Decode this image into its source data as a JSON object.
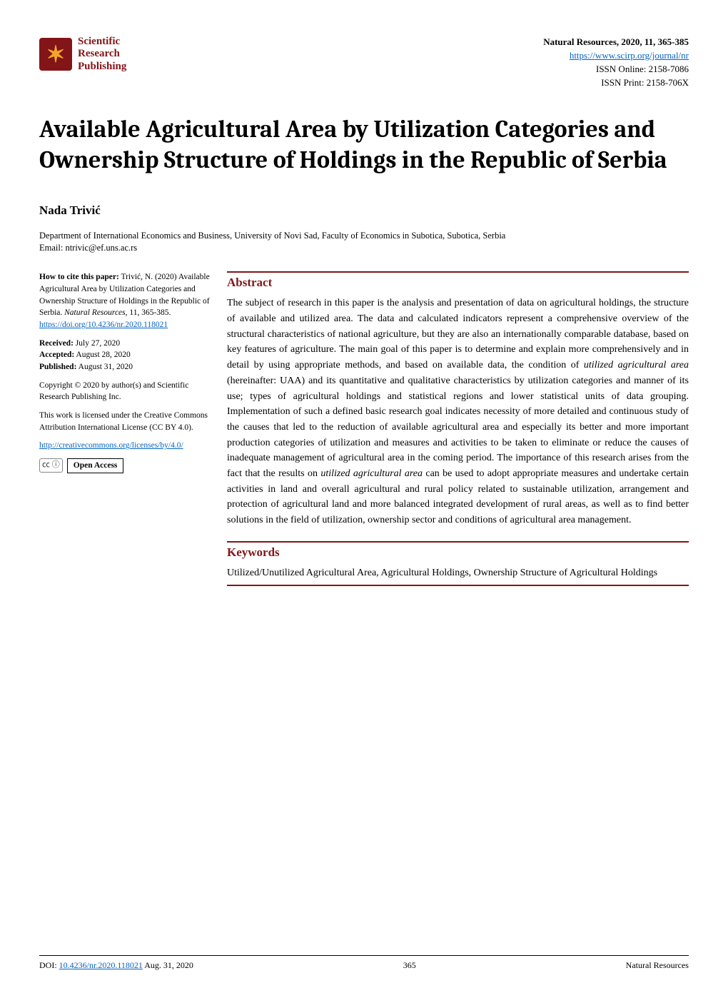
{
  "colors": {
    "brand_maroon": "#831518",
    "brand_gold": "#f4a62a",
    "link": "#0563c1",
    "text": "#000000",
    "background": "#ffffff"
  },
  "typography": {
    "body_font": "Times New Roman",
    "title_font": "Cambria",
    "title_size_pt": 26,
    "abstract_size_pt": 11,
    "sidebar_size_pt": 9
  },
  "header": {
    "publisher": "Scientific\nResearch\nPublishing",
    "journal_line1": "Natural Resources, 2020, 11, 365-385",
    "journal_url_text": "https://www.scirp.org/journal/nr",
    "issn_online": "ISSN Online: 2158-7086",
    "issn_print": "ISSN Print: 2158-706X"
  },
  "title": "Available Agricultural Area by Utilization Categories and Ownership Structure of Holdings in the Republic of Serbia",
  "author": "Nada Trivić",
  "affiliation": "Department of International Economics and Business, University of Novi Sad, Faculty of Economics in Subotica, Subotica, Serbia",
  "email": "Email: ntrivic@ef.uns.ac.rs",
  "sidebar": {
    "cite_label": "How to cite this paper:",
    "cite_text": " Trivić, N. (2020) Available Agricultural Area by Utilization Categories and Ownership Structure of Holdings in the Republic of Serbia. ",
    "cite_journal": "Natural Resources",
    "cite_vol": ", 11, 365-385.",
    "doi_link": "https://doi.org/10.4236/nr.2020.118021",
    "received_label": "Received:",
    "received": " July 27, 2020",
    "accepted_label": "Accepted:",
    "accepted": " August 28, 2020",
    "published_label": "Published:",
    "published": " August 31, 2020",
    "copyright": "Copyright © 2020 by author(s) and Scientific Research Publishing Inc.",
    "license1": "This work is licensed under the Creative Commons Attribution International License (CC BY 4.0).",
    "license_url": "http://creativecommons.org/licenses/by/4.0/",
    "cc_badge": "㏄ ⓘ",
    "open_access": "Open Access"
  },
  "abstract_heading": "Abstract",
  "abstract_p1": "The subject of research in this paper is the analysis and presentation of data on agricultural holdings, the structure of available and utilized area. The data and calculated indicators represent a comprehensive overview of the structural characteristics of national agriculture, but they are also an internationally comparable database, based on key features of agriculture. The main goal of this paper is to determine and explain more comprehensively and in detail by using appropriate methods, and based on available data, the condition of ",
  "abstract_em1": "utilized agricultural area",
  "abstract_p2": " (hereinafter: UAA) and its quantitative and qualitative characteristics by utilization categories and manner of its use; types of agricultural holdings and statistical regions and lower statistical units of data grouping. Implementation of such a defined basic research goal indicates necessity of more detailed and continuous study of the causes that led to the reduction of available agricultural area and especially its better and more important production categories of utilization and measures and activities to be taken to eliminate or reduce the causes of inadequate management of agricultural area in the coming period. The importance of this research arises from the fact that the results on ",
  "abstract_em2": "utilized agricultural area",
  "abstract_p3": " can be used to adopt appropriate measures and undertake certain activities in land and overall agricultural and rural policy related to sustainable utilization, arrangement and protection of agricultural land and more balanced integrated development of rural areas, as well as to find better solutions in the field of utilization, ownership sector and conditions of agricultural area management.",
  "keywords_heading": "Keywords",
  "keywords_text": "Utilized/Unutilized Agricultural Area, Agricultural Holdings, Ownership Structure of Agricultural Holdings",
  "footer": {
    "doi_label": "DOI: ",
    "doi_link": "10.4236/nr.2020.118021",
    "date": "  Aug. 31, 2020",
    "page": "365",
    "journal": "Natural Resources"
  }
}
